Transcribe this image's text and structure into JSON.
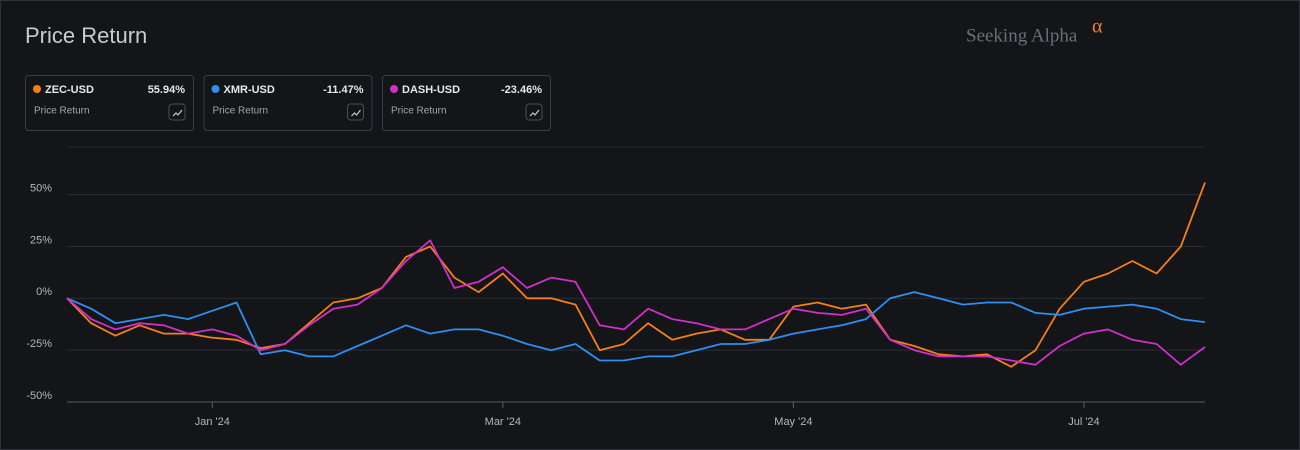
{
  "brand": {
    "name": "Seeking Alpha",
    "mark": "α"
  },
  "chart_data": {
    "type": "line",
    "title": "Price Return",
    "categories": [
      null,
      null,
      null,
      null,
      null,
      null,
      "Jan '24",
      null,
      null,
      null,
      null,
      null,
      null,
      null,
      null,
      null,
      null,
      null,
      "Mar '24",
      null,
      null,
      null,
      null,
      null,
      null,
      null,
      null,
      null,
      null,
      null,
      "May '24",
      null,
      null,
      null,
      null,
      null,
      null,
      null,
      null,
      null,
      null,
      null,
      "Jul '24",
      null,
      null,
      null,
      null,
      null
    ],
    "ylim": [
      -50,
      73
    ],
    "yticks": [
      {
        "value": 50,
        "label": "50%"
      },
      {
        "value": 25,
        "label": "25%"
      },
      {
        "value": 0,
        "label": "0%"
      },
      {
        "value": -25,
        "label": "-25%"
      },
      {
        "value": -50,
        "label": "-50%"
      }
    ],
    "grid": true,
    "series": [
      {
        "name": "ZEC-USD",
        "color": "#f57f17",
        "last_label": "55.94%",
        "card_label": "Price Return",
        "values": [
          0,
          -12,
          -18,
          -13,
          -17,
          -17,
          -19,
          -20,
          -24,
          -22,
          -12,
          -2,
          0,
          5,
          20,
          25,
          10,
          3,
          12,
          0,
          0,
          -3,
          -25,
          -22,
          -12,
          -20,
          -17,
          -15,
          -20,
          -20,
          -4,
          -2,
          -5,
          -3,
          -20,
          -23,
          -27,
          -28,
          -27,
          -33,
          -25,
          -5,
          8,
          12,
          18,
          12,
          25,
          55.94
        ]
      },
      {
        "name": "XMR-USD",
        "color": "#2e8fef",
        "last_label": "-11.47%",
        "card_label": "Price Return",
        "values": [
          0,
          -5,
          -12,
          -10,
          -8,
          -10,
          -6,
          -2,
          -27,
          -25,
          -28,
          -28,
          -23,
          -18,
          -13,
          -17,
          -15,
          -15,
          -18,
          -22,
          -25,
          -22,
          -30,
          -30,
          -28,
          -28,
          -25,
          -22,
          -22,
          -20,
          -17,
          -15,
          -13,
          -10,
          0,
          3,
          0,
          -3,
          -2,
          -2,
          -7,
          -8,
          -5,
          -4,
          -3,
          -5,
          -10,
          -11.47
        ]
      },
      {
        "name": "DASH-USD",
        "color": "#d12fc8",
        "last_label": "-23.46%",
        "card_label": "Price Return",
        "values": [
          0,
          -10,
          -15,
          -12,
          -13,
          -17,
          -15,
          -18,
          -25,
          -22,
          -13,
          -5,
          -3,
          5,
          18,
          28,
          5,
          8,
          15,
          5,
          10,
          8,
          -13,
          -15,
          -5,
          -10,
          -12,
          -15,
          -15,
          -10,
          -5,
          -7,
          -8,
          -5,
          -20,
          -25,
          -28,
          -28,
          -28,
          -30,
          -32,
          -23,
          -17,
          -15,
          -20,
          -22,
          -32,
          -23.46
        ]
      }
    ]
  }
}
